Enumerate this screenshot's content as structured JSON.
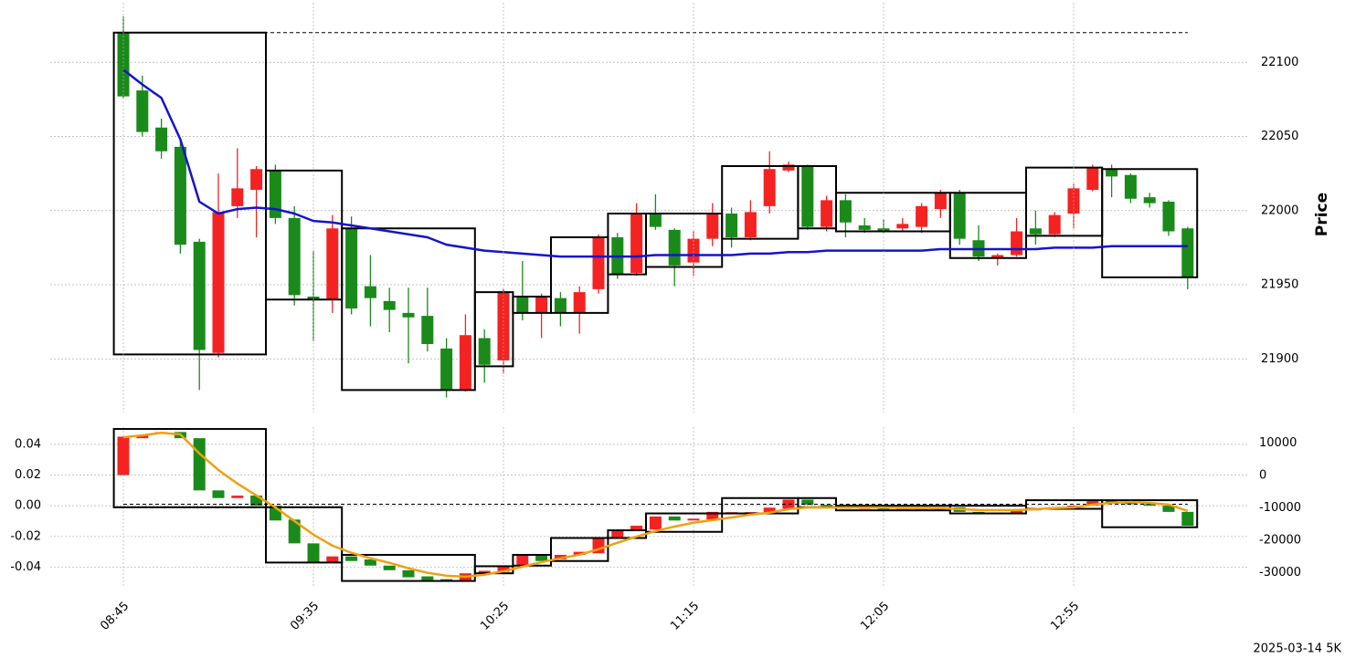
{
  "footer": "2025-03-14 5K",
  "chart_data": [
    {
      "type": "candlestick",
      "ylabel": "Price",
      "yaxis_side": "right",
      "grid": true,
      "up_color": "#f52222",
      "down_color": "#1a8a1a",
      "ylim": [
        21862,
        22142
      ],
      "yticks": [
        21900,
        21950,
        22000,
        22050,
        22100
      ],
      "hline": 22120,
      "open": [
        22120,
        22081,
        22056,
        22043,
        21979,
        21904,
        22003,
        22014,
        22027,
        21995,
        21942,
        21940,
        21988,
        21949,
        21939,
        21931,
        21929,
        21907,
        21879,
        21914,
        21899,
        21942,
        21931,
        21941,
        21931,
        21947,
        21982,
        21958,
        21998,
        21987,
        21965,
        21981,
        21998,
        21982,
        22003,
        22027,
        22030,
        21989,
        22007,
        21990,
        21988,
        21988,
        21989,
        22001,
        22012,
        21980,
        21968,
        21970,
        21988,
        21984,
        21998,
        22014,
        22028,
        22024,
        22009,
        22006,
        21988
      ],
      "high": [
        22131,
        22091,
        22062,
        22047,
        21981,
        22025,
        22042,
        22030,
        22031,
        22003,
        21973,
        21997,
        21996,
        21970,
        21948,
        21948,
        21948,
        21914,
        21930,
        21920,
        21947,
        21966,
        21944,
        21945,
        21949,
        21984,
        21985,
        22005,
        22011,
        21988,
        21986,
        22005,
        22002,
        22007,
        22040,
        22033,
        22031,
        22010,
        22011,
        21995,
        21994,
        21995,
        22005,
        22014,
        22014,
        21990,
        21971,
        21995,
        22000,
        21999,
        22018,
        22031,
        22031,
        22025,
        22012,
        22007,
        21989
      ],
      "low": [
        22076,
        22050,
        22035,
        21971,
        21879,
        21901,
        21995,
        21982,
        21991,
        21936,
        21912,
        21931,
        21930,
        21922,
        21918,
        21897,
        21905,
        21874,
        21878,
        21884,
        21890,
        21926,
        21914,
        21922,
        21917,
        21944,
        21954,
        21956,
        21987,
        21949,
        21956,
        21976,
        21975,
        21980,
        21998,
        22026,
        21987,
        21986,
        21982,
        21985,
        21985,
        21986,
        21985,
        21995,
        21977,
        21966,
        21963,
        21969,
        21977,
        21982,
        21988,
        22013,
        22009,
        22005,
        22002,
        21983,
        21947
      ],
      "close": [
        22077,
        22053,
        22040,
        21977,
        21906,
        21999,
        22015,
        22028,
        21995,
        21943,
        21940,
        21988,
        21934,
        21941,
        21933,
        21928,
        21910,
        21879,
        21916,
        21896,
        21945,
        21931,
        21942,
        21931,
        21945,
        21982,
        21957,
        21998,
        21989,
        21963,
        21981,
        21998,
        21982,
        21999,
        22028,
        22031,
        21989,
        22007,
        21992,
        21987,
        21986,
        21991,
        22003,
        22012,
        21981,
        21969,
        21970,
        21986,
        21984,
        21997,
        22015,
        22029,
        22023,
        22008,
        22005,
        21986,
        21955
      ],
      "lines": [
        {
          "color": "#1414cc",
          "values": [
            22095,
            22085,
            22076,
            22048,
            22006,
            21998,
            22001,
            22002,
            22001,
            21998,
            21993,
            21992,
            21990,
            21988,
            21986,
            21984,
            21982,
            21977,
            21975,
            21973,
            21972,
            21971,
            21970,
            21969,
            21969,
            21969,
            21969,
            21969,
            21970,
            21970,
            21970,
            21970,
            21970,
            21971,
            21971,
            21972,
            21972,
            21973,
            21973,
            21973,
            21973,
            21973,
            21973,
            21974,
            21974,
            21974,
            21974,
            21974,
            21974,
            21975,
            21975,
            21975,
            21976,
            21976,
            21976,
            21976,
            21976
          ]
        }
      ],
      "boxes": [
        {
          "start": 0,
          "end": 7,
          "high": 22120,
          "low": 21903
        },
        {
          "start": 8,
          "end": 11,
          "high": 22027,
          "low": 21940
        },
        {
          "start": 12,
          "end": 18,
          "high": 21988,
          "low": 21879
        },
        {
          "start": 19,
          "end": 20,
          "high": 21945,
          "low": 21895
        },
        {
          "start": 21,
          "end": 22,
          "high": 21942,
          "low": 21931
        },
        {
          "start": 23,
          "end": 25,
          "high": 21982,
          "low": 21931
        },
        {
          "start": 26,
          "end": 27,
          "high": 21998,
          "low": 21957
        },
        {
          "start": 28,
          "end": 31,
          "high": 21998,
          "low": 21962
        },
        {
          "start": 32,
          "end": 35,
          "high": 22030,
          "low": 21981
        },
        {
          "start": 36,
          "end": 37,
          "high": 22030,
          "low": 21988
        },
        {
          "start": 38,
          "end": 43,
          "high": 22012,
          "low": 21986
        },
        {
          "start": 44,
          "end": 47,
          "high": 22012,
          "low": 21968
        },
        {
          "start": 48,
          "end": 51,
          "high": 22029,
          "low": 21983
        },
        {
          "start": 52,
          "end": 56,
          "high": 22028,
          "low": 21955
        }
      ]
    },
    {
      "type": "candlestick",
      "yaxis_side": "left",
      "grid": true,
      "up_color": "#f52222",
      "down_color": "#1a8a1a",
      "categories": [
        "08:45",
        null,
        null,
        null,
        null,
        null,
        null,
        null,
        null,
        null,
        "09:35",
        null,
        null,
        null,
        null,
        null,
        null,
        null,
        null,
        null,
        "10:25",
        null,
        null,
        null,
        null,
        null,
        null,
        null,
        null,
        null,
        "11:15",
        null,
        null,
        null,
        null,
        null,
        null,
        null,
        null,
        null,
        "12:05",
        null,
        null,
        null,
        null,
        null,
        null,
        null,
        null,
        null,
        "12:55",
        null,
        null,
        null,
        null,
        null,
        null
      ],
      "ylim": [
        -0.054,
        0.053
      ],
      "yticks": [
        -0.04,
        -0.02,
        {
          "value": 0,
          "label": "0.00"
        },
        0.02,
        0.04
      ],
      "y2lim": [
        -35000,
        15800
      ],
      "y2ticks": [
        -30000,
        -20000,
        -10000,
        0,
        10000
      ],
      "hline": 0.001,
      "open": [
        0.02,
        0.044,
        0.047,
        0.048,
        0.044,
        0.01,
        0.005,
        0.0066,
        0.0,
        -0.009,
        -0.0245,
        -0.037,
        -0.033,
        -0.035,
        -0.039,
        -0.042,
        -0.046,
        -0.0478,
        -0.049,
        -0.044,
        -0.043,
        -0.039,
        -0.032,
        -0.035,
        -0.032,
        -0.031,
        -0.021,
        -0.016,
        -0.0155,
        -0.007,
        -0.0096,
        -0.009,
        -0.0054,
        -0.0048,
        -0.0042,
        -0.002,
        0.004,
        0.0006,
        -0.0006,
        -0.002,
        -0.0015,
        -0.0025,
        -0.002,
        -0.003,
        -0.001,
        -0.004,
        -0.005,
        -0.0045,
        -0.003,
        -0.002,
        -0.001,
        0.0,
        0.003,
        0.002,
        0.001,
        0.0,
        -0.004
      ],
      "close": [
        0.045,
        0.046,
        0.048,
        0.044,
        0.01,
        0.005,
        0.0066,
        0.0,
        -0.0096,
        -0.0245,
        -0.037,
        -0.033,
        -0.036,
        -0.039,
        -0.042,
        -0.0466,
        -0.0484,
        -0.049,
        -0.044,
        -0.0424,
        -0.04,
        -0.032,
        -0.036,
        -0.032,
        -0.03,
        -0.021,
        -0.016,
        -0.013,
        -0.007,
        -0.0096,
        -0.0084,
        -0.004,
        -0.0042,
        -0.0042,
        -0.0012,
        0.004,
        0.0006,
        -0.0006,
        -0.002,
        -0.0015,
        -0.0025,
        -0.002,
        -0.003,
        -0.001,
        -0.004,
        -0.005,
        -0.0045,
        -0.003,
        -0.002,
        -0.001,
        0.0,
        0.003,
        0.002,
        0.001,
        0.0,
        -0.004,
        -0.013
      ],
      "lines": [
        {
          "color": "#f0a010",
          "axis": "y2",
          "values": [
            11800,
            12400,
            13200,
            12700,
            6800,
            1700,
            -2500,
            -6200,
            -9900,
            -14100,
            -18300,
            -21700,
            -23900,
            -25600,
            -27000,
            -28700,
            -30100,
            -31000,
            -31300,
            -30700,
            -29600,
            -28200,
            -26800,
            -25600,
            -24500,
            -22800,
            -20800,
            -18900,
            -17200,
            -15800,
            -14600,
            -13800,
            -13000,
            -12100,
            -11500,
            -10400,
            -9900,
            -9900,
            -9900,
            -9900,
            -9900,
            -10100,
            -10100,
            -10100,
            -10400,
            -10700,
            -10700,
            -10700,
            -10400,
            -10100,
            -9900,
            -9000,
            -8500,
            -8200,
            -8500,
            -9000,
            -11000
          ]
        }
      ],
      "boxes": [
        {
          "start": 0,
          "end": 7,
          "high": 0.05,
          "low": -0.001
        },
        {
          "start": 8,
          "end": 11,
          "high": -0.001,
          "low": -0.037
        },
        {
          "start": 12,
          "end": 18,
          "high": -0.032,
          "low": -0.049
        },
        {
          "start": 19,
          "end": 20,
          "high": -0.0394,
          "low": -0.044
        },
        {
          "start": 21,
          "end": 22,
          "high": -0.032,
          "low": -0.039
        },
        {
          "start": 23,
          "end": 25,
          "high": -0.021,
          "low": -0.036
        },
        {
          "start": 26,
          "end": 27,
          "high": -0.016,
          "low": -0.021
        },
        {
          "start": 28,
          "end": 31,
          "high": -0.005,
          "low": -0.017
        },
        {
          "start": 32,
          "end": 35,
          "high": 0.005,
          "low": -0.005
        },
        {
          "start": 36,
          "end": 37,
          "high": 0.005,
          "low": -0.001
        },
        {
          "start": 38,
          "end": 43,
          "high": 0,
          "low": -0.003
        },
        {
          "start": 44,
          "end": 47,
          "high": 0,
          "low": -0.005
        },
        {
          "start": 48,
          "end": 51,
          "high": 0.0036,
          "low": -0.002
        },
        {
          "start": 52,
          "end": 56,
          "high": 0.0036,
          "low": -0.014
        }
      ]
    }
  ]
}
